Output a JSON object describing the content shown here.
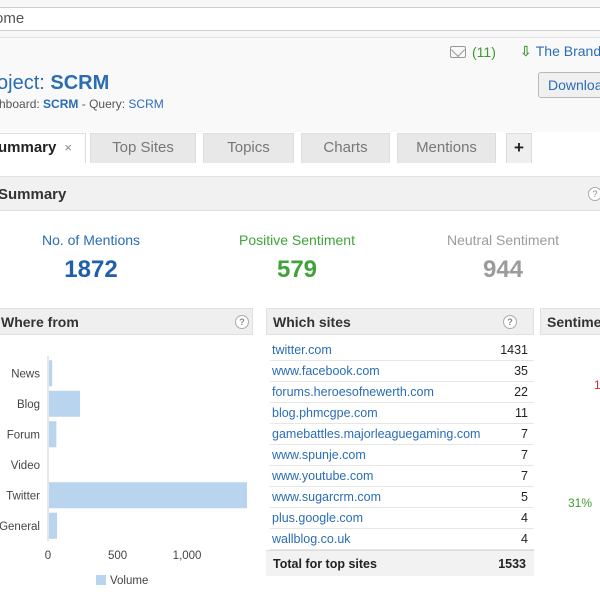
{
  "browser": {
    "address_text": "ome"
  },
  "header": {
    "notification_count": "(11)",
    "brand_link": "The Brand",
    "download_label": "Downloa",
    "project_prefix": "oject:",
    "project_name": "SCRM",
    "dashboard_prefix": "hboard:",
    "dashboard_name": "SCRM",
    "query_sep": "- Query:",
    "query_name": "SCRM"
  },
  "tabs": [
    {
      "label": "ummary",
      "close": "×"
    },
    {
      "label": "Top Sites"
    },
    {
      "label": "Topics"
    },
    {
      "label": "Charts"
    },
    {
      "label": "Mentions"
    },
    {
      "label": "+"
    }
  ],
  "summary": {
    "title": "Summary",
    "help": "?",
    "stats": [
      {
        "label": "No. of Mentions",
        "value": "1872",
        "color": "#1f5fae"
      },
      {
        "label": "Positive Sentiment",
        "value": "579",
        "color": "#3fa33a"
      },
      {
        "label": "Neutral Sentiment",
        "value": "944",
        "color": "#9b9b9b"
      }
    ]
  },
  "where_from": {
    "title": "Where from",
    "help": "?",
    "chart_data": {
      "type": "bar",
      "orientation": "horizontal",
      "categories": [
        "News",
        "Blog",
        "Forum",
        "Video",
        "Twitter",
        "General"
      ],
      "series": [
        {
          "name": "Volume",
          "values": [
            30,
            230,
            60,
            0,
            1431,
            65
          ]
        }
      ],
      "xlim": [
        0,
        1431
      ],
      "xticks": [
        "0",
        "500",
        "1,000"
      ],
      "xtick_values": [
        0,
        500,
        1000
      ],
      "legend": "bottom",
      "bar_color": "#b9d4ee"
    }
  },
  "which_sites": {
    "title": "Which sites",
    "help": "?",
    "rows": [
      {
        "site": "twitter.com",
        "count": "1431"
      },
      {
        "site": "www.facebook.com",
        "count": "35"
      },
      {
        "site": "forums.heroesofnewerth.com",
        "count": "22"
      },
      {
        "site": "blog.phmcgpe.com",
        "count": "11"
      },
      {
        "site": "gamebattles.majorleaguegaming.com",
        "count": "7"
      },
      {
        "site": "www.spunje.com",
        "count": "7"
      },
      {
        "site": "www.youtube.com",
        "count": "7"
      },
      {
        "site": "www.sugarcrm.com",
        "count": "5"
      },
      {
        "site": "plus.google.com",
        "count": "4"
      },
      {
        "site": "wallblog.co.uk",
        "count": "4"
      }
    ],
    "total_label": "Total for top sites",
    "total_value": "1533"
  },
  "sentiment": {
    "title": "Sentime",
    "pct_red": "1",
    "pct_green": "31%"
  }
}
